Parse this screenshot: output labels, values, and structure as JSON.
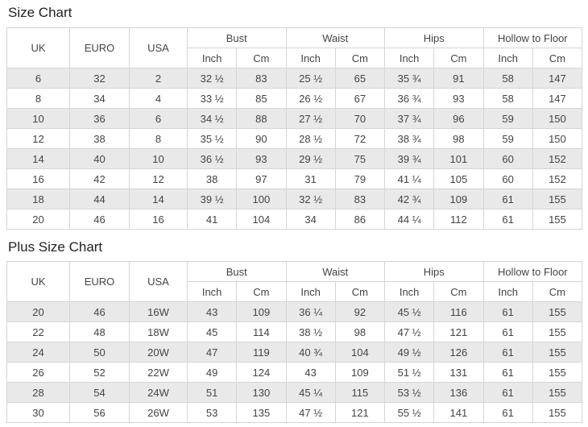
{
  "colors": {
    "title_text": "#222222",
    "cell_text": "#444444",
    "border": "#d5d5d5",
    "row_alt_bg": "#e9e9e9",
    "row_bg": "#ffffff",
    "header_bg": "#ffffff"
  },
  "chart_data": [
    {
      "type": "table",
      "title": "Size Chart",
      "header": {
        "plain": [
          "UK",
          "EURO",
          "USA"
        ],
        "groups": [
          {
            "label": "Bust",
            "subs": [
              "Inch",
              "Cm"
            ]
          },
          {
            "label": "Waist",
            "subs": [
              "Inch",
              "Cm"
            ]
          },
          {
            "label": "Hips",
            "subs": [
              "Inch",
              "Cm"
            ]
          },
          {
            "label": "Hollow to Floor",
            "subs": [
              "Inch",
              "Cm"
            ]
          }
        ]
      },
      "rows": [
        [
          "6",
          "32",
          "2",
          "32 ½",
          "83",
          "25 ½",
          "65",
          "35 ¾",
          "91",
          "58",
          "147"
        ],
        [
          "8",
          "34",
          "4",
          "33 ½",
          "85",
          "26 ½",
          "67",
          "36 ¾",
          "93",
          "58",
          "147"
        ],
        [
          "10",
          "36",
          "6",
          "34 ½",
          "88",
          "27 ½",
          "70",
          "37 ¾",
          "96",
          "59",
          "150"
        ],
        [
          "12",
          "38",
          "8",
          "35 ½",
          "90",
          "28 ½",
          "72",
          "38 ¾",
          "98",
          "59",
          "150"
        ],
        [
          "14",
          "40",
          "10",
          "36 ½",
          "93",
          "29 ½",
          "75",
          "39 ¾",
          "101",
          "60",
          "152"
        ],
        [
          "16",
          "42",
          "12",
          "38",
          "97",
          "31",
          "79",
          "41 ¼",
          "105",
          "60",
          "152"
        ],
        [
          "18",
          "44",
          "14",
          "39 ½",
          "100",
          "32 ½",
          "83",
          "42 ¾",
          "109",
          "61",
          "155"
        ],
        [
          "20",
          "46",
          "16",
          "41",
          "104",
          "34",
          "86",
          "44 ¼",
          "112",
          "61",
          "155"
        ]
      ]
    },
    {
      "type": "table",
      "title": "Plus Size Chart",
      "header": {
        "plain": [
          "UK",
          "EURO",
          "USA"
        ],
        "groups": [
          {
            "label": "Bust",
            "subs": [
              "Inch",
              "Cm"
            ]
          },
          {
            "label": "Waist",
            "subs": [
              "Inch",
              "Cm"
            ]
          },
          {
            "label": "Hips",
            "subs": [
              "Inch",
              "Cm"
            ]
          },
          {
            "label": "Hollow to Floor",
            "subs": [
              "Inch",
              "Cm"
            ]
          }
        ]
      },
      "rows": [
        [
          "20",
          "46",
          "16W",
          "43",
          "109",
          "36 ¼",
          "92",
          "45 ½",
          "116",
          "61",
          "155"
        ],
        [
          "22",
          "48",
          "18W",
          "45",
          "114",
          "38 ½",
          "98",
          "47 ½",
          "121",
          "61",
          "155"
        ],
        [
          "24",
          "50",
          "20W",
          "47",
          "119",
          "40 ¾",
          "104",
          "49 ½",
          "126",
          "61",
          "155"
        ],
        [
          "26",
          "52",
          "22W",
          "49",
          "124",
          "43",
          "109",
          "51 ½",
          "131",
          "61",
          "155"
        ],
        [
          "28",
          "54",
          "24W",
          "51",
          "130",
          "45 ¼",
          "115",
          "53 ½",
          "136",
          "61",
          "155"
        ],
        [
          "30",
          "56",
          "26W",
          "53",
          "135",
          "47 ½",
          "121",
          "55 ½",
          "141",
          "61",
          "155"
        ]
      ]
    }
  ]
}
